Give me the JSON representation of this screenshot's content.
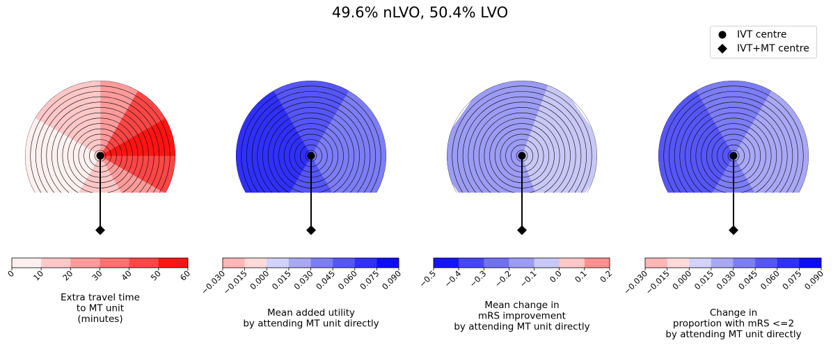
{
  "title": "49.6% nLVO, 50.4% LVO",
  "legend": {
    "ivt_label": "IVT centre",
    "mt_label": "IVT+MT centre",
    "ivt_marker": "circle",
    "mt_marker": "diamond"
  },
  "chart_data": [
    {
      "type": "heatmap",
      "shape": "semicircle-fan",
      "rings": 13,
      "sectors_deg": [
        [
          -90,
          -60
        ],
        [
          -60,
          -30
        ],
        [
          -30,
          0
        ],
        [
          0,
          30
        ],
        [
          30,
          60
        ],
        [
          60,
          90
        ],
        [
          90,
          120
        ],
        [
          120,
          150
        ],
        [
          150,
          180
        ],
        [
          180,
          210
        ],
        [
          210,
          240
        ],
        [
          240,
          270
        ]
      ],
      "sector_values": [
        0,
        5,
        15,
        15,
        25,
        45,
        60,
        45,
        25,
        15,
        15,
        5
      ],
      "ivt_centre": [
        0,
        0
      ],
      "mt_centre": [
        0,
        -50
      ],
      "colorbar": {
        "label": "Extra travel time\nto MT unit\n(minutes)",
        "bounds": [
          0,
          10,
          20,
          30,
          40,
          50,
          60
        ],
        "ticks": [
          "0",
          "10",
          "20",
          "30",
          "40",
          "50",
          "60"
        ],
        "colors": [
          "#fff0f0",
          "#ffc8c8",
          "#ff9b9b",
          "#ff7070",
          "#ff4646",
          "#ff1414"
        ]
      }
    },
    {
      "type": "heatmap",
      "shape": "semicircle-fan",
      "rings": 13,
      "sectors_deg": [
        [
          -30,
          30
        ],
        [
          30,
          150
        ],
        [
          150,
          210
        ],
        [
          210,
          330
        ]
      ],
      "sector_values": [
        0.045,
        0.03,
        0.045,
        0.06
      ],
      "ivt_centre": [
        0,
        0
      ],
      "mt_centre": [
        0,
        -50
      ],
      "colorbar": {
        "label": "Mean added utility\nby attending MT unit directly",
        "bounds": [
          -0.03,
          -0.015,
          0.0,
          0.015,
          0.03,
          0.045,
          0.06,
          0.075,
          0.09
        ],
        "ticks": [
          "−0.030",
          "−0.015",
          "0.000",
          "0.015",
          "0.030",
          "0.045",
          "0.060",
          "0.075",
          "0.090"
        ],
        "colors": [
          "#ffb6b6",
          "#ffdada",
          "#d2d2fa",
          "#a8a8f5",
          "#7d7df5",
          "#5656f8",
          "#3030fa",
          "#0c0cfb"
        ]
      }
    },
    {
      "type": "heatmap",
      "shape": "semicircle-fan",
      "rings": 13,
      "sectors_deg": [
        [
          -20,
          20
        ],
        [
          20,
          160
        ],
        [
          160,
          200
        ],
        [
          200,
          340
        ]
      ],
      "sector_values": [
        -0.15,
        -0.05,
        -0.15,
        -0.2
      ],
      "ivt_centre": [
        0,
        0
      ],
      "mt_centre": [
        0,
        -50
      ],
      "colorbar": {
        "label": "Mean change in\nmRS improvement\nby attending MT unit directly",
        "bounds": [
          -0.5,
          -0.4,
          -0.3,
          -0.2,
          -0.1,
          0.0,
          0.1,
          0.2
        ],
        "ticks": [
          "−0.5",
          "−0.4",
          "−0.3",
          "−0.2",
          "−0.1",
          "0.0",
          "0.1",
          "0.2"
        ],
        "colors": [
          "#1414fb",
          "#4646f6",
          "#7070f3",
          "#9c9cf4",
          "#c8c8f6",
          "#ffc8c8",
          "#ff9090"
        ]
      }
    },
    {
      "type": "heatmap",
      "shape": "semicircle-fan",
      "rings": 13,
      "sectors_deg": [
        [
          -30,
          30
        ],
        [
          30,
          150
        ],
        [
          150,
          210
        ],
        [
          210,
          330
        ]
      ],
      "sector_values": [
        0.03,
        0.015,
        0.03,
        0.045
      ],
      "ivt_centre": [
        0,
        0
      ],
      "mt_centre": [
        0,
        -50
      ],
      "colorbar": {
        "label": "Change in\nproportion with mRS <=2\nby attending MT unit directly",
        "bounds": [
          -0.03,
          -0.015,
          0.0,
          0.015,
          0.03,
          0.045,
          0.06,
          0.075,
          0.09
        ],
        "ticks": [
          "−0.030",
          "−0.015",
          "0.000",
          "0.015",
          "0.030",
          "0.045",
          "0.060",
          "0.075",
          "0.090"
        ],
        "colors": [
          "#ffb6b6",
          "#ffdada",
          "#d2d2fa",
          "#a8a8f5",
          "#7d7df5",
          "#5656f8",
          "#3030fa",
          "#0c0cfb"
        ]
      }
    }
  ]
}
